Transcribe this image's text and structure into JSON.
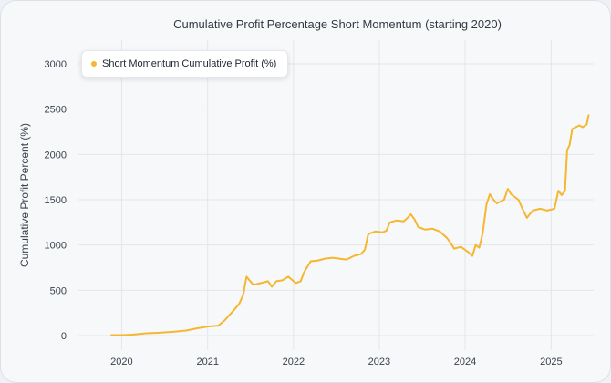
{
  "chart_data": {
    "type": "line",
    "title": "Cumulative Profit Percentage Short Momentum (starting 2020)",
    "xlabel": "",
    "ylabel": "Cumulative Profit Percent (%)",
    "x_ticks": [
      "2020",
      "2021",
      "2022",
      "2023",
      "2024",
      "2025"
    ],
    "y_ticks": [
      0,
      500,
      1000,
      1500,
      2000,
      2500,
      3000
    ],
    "ylim": [
      0,
      3000
    ],
    "xlim": [
      "2019-07-01",
      "2025-07-01"
    ],
    "grid": true,
    "legend_position": "top-left",
    "colors": {
      "series": "#f5b731",
      "grid": "#e3e6ea",
      "axis_text": "#3a414c"
    },
    "series": [
      {
        "name": "Short Momentum Cumulative Profit (%)",
        "points": [
          [
            "2019-11-15",
            5
          ],
          [
            "2020-01-01",
            5
          ],
          [
            "2020-02-15",
            10
          ],
          [
            "2020-03-15",
            18
          ],
          [
            "2020-04-15",
            25
          ],
          [
            "2020-06-01",
            30
          ],
          [
            "2020-08-01",
            40
          ],
          [
            "2020-10-01",
            55
          ],
          [
            "2020-11-15",
            80
          ],
          [
            "2021-01-01",
            100
          ],
          [
            "2021-02-15",
            110
          ],
          [
            "2021-03-15",
            170
          ],
          [
            "2021-04-15",
            260
          ],
          [
            "2021-05-15",
            350
          ],
          [
            "2021-06-01",
            450
          ],
          [
            "2021-06-15",
            650
          ],
          [
            "2021-07-01",
            600
          ],
          [
            "2021-07-15",
            560
          ],
          [
            "2021-08-15",
            580
          ],
          [
            "2021-09-15",
            600
          ],
          [
            "2021-10-01",
            540
          ],
          [
            "2021-10-20",
            600
          ],
          [
            "2021-11-15",
            610
          ],
          [
            "2021-12-10",
            650
          ],
          [
            "2022-01-10",
            580
          ],
          [
            "2022-02-01",
            600
          ],
          [
            "2022-02-15",
            700
          ],
          [
            "2022-03-01",
            760
          ],
          [
            "2022-03-15",
            820
          ],
          [
            "2022-04-15",
            830
          ],
          [
            "2022-05-15",
            850
          ],
          [
            "2022-06-15",
            860
          ],
          [
            "2022-07-15",
            850
          ],
          [
            "2022-08-15",
            840
          ],
          [
            "2022-09-15",
            880
          ],
          [
            "2022-10-15",
            900
          ],
          [
            "2022-11-01",
            950
          ],
          [
            "2022-11-15",
            1120
          ],
          [
            "2022-12-15",
            1150
          ],
          [
            "2023-01-15",
            1140
          ],
          [
            "2023-02-01",
            1160
          ],
          [
            "2023-02-15",
            1250
          ],
          [
            "2023-03-15",
            1270
          ],
          [
            "2023-04-15",
            1260
          ],
          [
            "2023-05-01",
            1300
          ],
          [
            "2023-05-15",
            1340
          ],
          [
            "2023-06-01",
            1280
          ],
          [
            "2023-06-15",
            1200
          ],
          [
            "2023-07-15",
            1170
          ],
          [
            "2023-08-15",
            1180
          ],
          [
            "2023-09-15",
            1150
          ],
          [
            "2023-10-15",
            1080
          ],
          [
            "2023-11-01",
            1020
          ],
          [
            "2023-11-15",
            960
          ],
          [
            "2023-12-15",
            980
          ],
          [
            "2024-01-15",
            920
          ],
          [
            "2024-02-01",
            880
          ],
          [
            "2024-02-15",
            1000
          ],
          [
            "2024-03-01",
            970
          ],
          [
            "2024-03-15",
            1120
          ],
          [
            "2024-04-01",
            1450
          ],
          [
            "2024-04-15",
            1560
          ],
          [
            "2024-05-01",
            1500
          ],
          [
            "2024-05-15",
            1460
          ],
          [
            "2024-06-15",
            1500
          ],
          [
            "2024-07-01",
            1620
          ],
          [
            "2024-07-15",
            1560
          ],
          [
            "2024-08-15",
            1500
          ],
          [
            "2024-09-01",
            1400
          ],
          [
            "2024-09-20",
            1300
          ],
          [
            "2024-10-15",
            1380
          ],
          [
            "2024-11-15",
            1400
          ],
          [
            "2024-12-15",
            1380
          ],
          [
            "2025-01-15",
            1400
          ],
          [
            "2025-02-01",
            1600
          ],
          [
            "2025-02-15",
            1550
          ],
          [
            "2025-03-01",
            1600
          ],
          [
            "2025-03-10",
            2050
          ],
          [
            "2025-03-20",
            2100
          ],
          [
            "2025-04-01",
            2280
          ],
          [
            "2025-04-15",
            2300
          ],
          [
            "2025-05-01",
            2320
          ],
          [
            "2025-05-15",
            2300
          ],
          [
            "2025-06-01",
            2330
          ],
          [
            "2025-06-10",
            2440
          ]
        ]
      }
    ]
  }
}
